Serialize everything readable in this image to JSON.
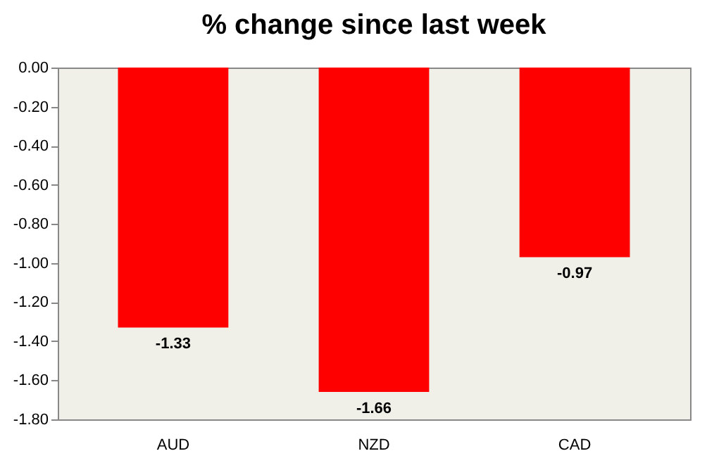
{
  "chart_data": {
    "type": "bar",
    "title": "% change since last week",
    "categories": [
      "AUD",
      "NZD",
      "CAD"
    ],
    "values": [
      -1.33,
      -1.66,
      -0.97
    ],
    "color": "#ff0000",
    "ylim": [
      -1.8,
      0
    ],
    "yticks": [
      {
        "value": 0,
        "label": "0.00"
      },
      {
        "value": -0.2,
        "label": "-0.20"
      },
      {
        "value": -0.4,
        "label": "-0.40"
      },
      {
        "value": -0.6,
        "label": "-0.60"
      },
      {
        "value": -0.8,
        "label": "-0.80"
      },
      {
        "value": -1.0,
        "label": "-1.00"
      },
      {
        "value": -1.2,
        "label": "-1.20"
      },
      {
        "value": -1.4,
        "label": "-1.40"
      },
      {
        "value": -1.6,
        "label": "-1.60"
      },
      {
        "value": -1.8,
        "label": "-1.80"
      }
    ],
    "data_labels": true,
    "grid": false
  }
}
